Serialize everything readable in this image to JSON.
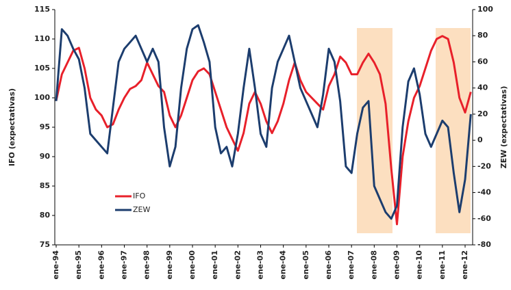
{
  "chart_data": {
    "type": "line",
    "categories": [
      "ene-94",
      null,
      null,
      null,
      "ene-95",
      null,
      null,
      null,
      "ene-96",
      null,
      null,
      null,
      "ene-97",
      null,
      null,
      null,
      "ene-98",
      null,
      null,
      null,
      "ene-99",
      null,
      null,
      null,
      "ene-00",
      null,
      null,
      null,
      "ene-01",
      null,
      null,
      null,
      "ene-02",
      null,
      null,
      null,
      "ene-03",
      null,
      null,
      null,
      "ene-04",
      null,
      null,
      null,
      "ene-05",
      null,
      null,
      null,
      "ene-06",
      null,
      null,
      null,
      "ene-07",
      null,
      null,
      null,
      "ene-08",
      null,
      null,
      null,
      "ene-09",
      null,
      null,
      null,
      "ene-10",
      null,
      null,
      null,
      "ene-11",
      null,
      null,
      null,
      "ene-12",
      null
    ],
    "series": [
      {
        "name": "IFO",
        "color": "#e8202a",
        "values": [
          99.5,
          104,
          106,
          108,
          108.5,
          105,
          100,
          98,
          97,
          95,
          95.5,
          98,
          100,
          101.5,
          102,
          103,
          106,
          104,
          102,
          101,
          97,
          95,
          97,
          100,
          103,
          104.5,
          105,
          104,
          101,
          98,
          95,
          93,
          91,
          94,
          99,
          101,
          99,
          96,
          94,
          96,
          99,
          103,
          106,
          103,
          101,
          100,
          99,
          98,
          102,
          104,
          107,
          106,
          104,
          104,
          106,
          107.5,
          106,
          104,
          99,
          88,
          78.5,
          90,
          96,
          100,
          102,
          105,
          108,
          110,
          110.5,
          110,
          106,
          100,
          97.5,
          101
        ]
      },
      {
        "name": "ZEW",
        "color": "#1c3d6e",
        "axis": "y2",
        "values": [
          30,
          85,
          80,
          70,
          62,
          40,
          5,
          0,
          -5,
          -10,
          25,
          60,
          70,
          75,
          80,
          70,
          60,
          70,
          60,
          10,
          -20,
          -5,
          40,
          70,
          85,
          88,
          75,
          60,
          10,
          -10,
          -5,
          -20,
          5,
          40,
          70,
          40,
          5,
          -5,
          40,
          60,
          70,
          80,
          60,
          40,
          30,
          20,
          10,
          35,
          70,
          60,
          30,
          -20,
          -25,
          5,
          25,
          30,
          -35,
          -45,
          -55,
          -60,
          -50,
          10,
          45,
          55,
          35,
          5,
          -5,
          5,
          15,
          10,
          -25,
          -55,
          -30,
          20
        ]
      }
    ],
    "ylabel": "IFO (expectativas)",
    "y2label": "ZEW (expectativas)",
    "ylim": [
      75,
      115
    ],
    "yticks": [
      75,
      80,
      85,
      90,
      95,
      100,
      105,
      110,
      115
    ],
    "y2lim": [
      -80,
      100
    ],
    "y2ticks": [
      -80,
      -60,
      -40,
      -20,
      0,
      20,
      40,
      60,
      80,
      100
    ],
    "legend": "lower left"
  }
}
